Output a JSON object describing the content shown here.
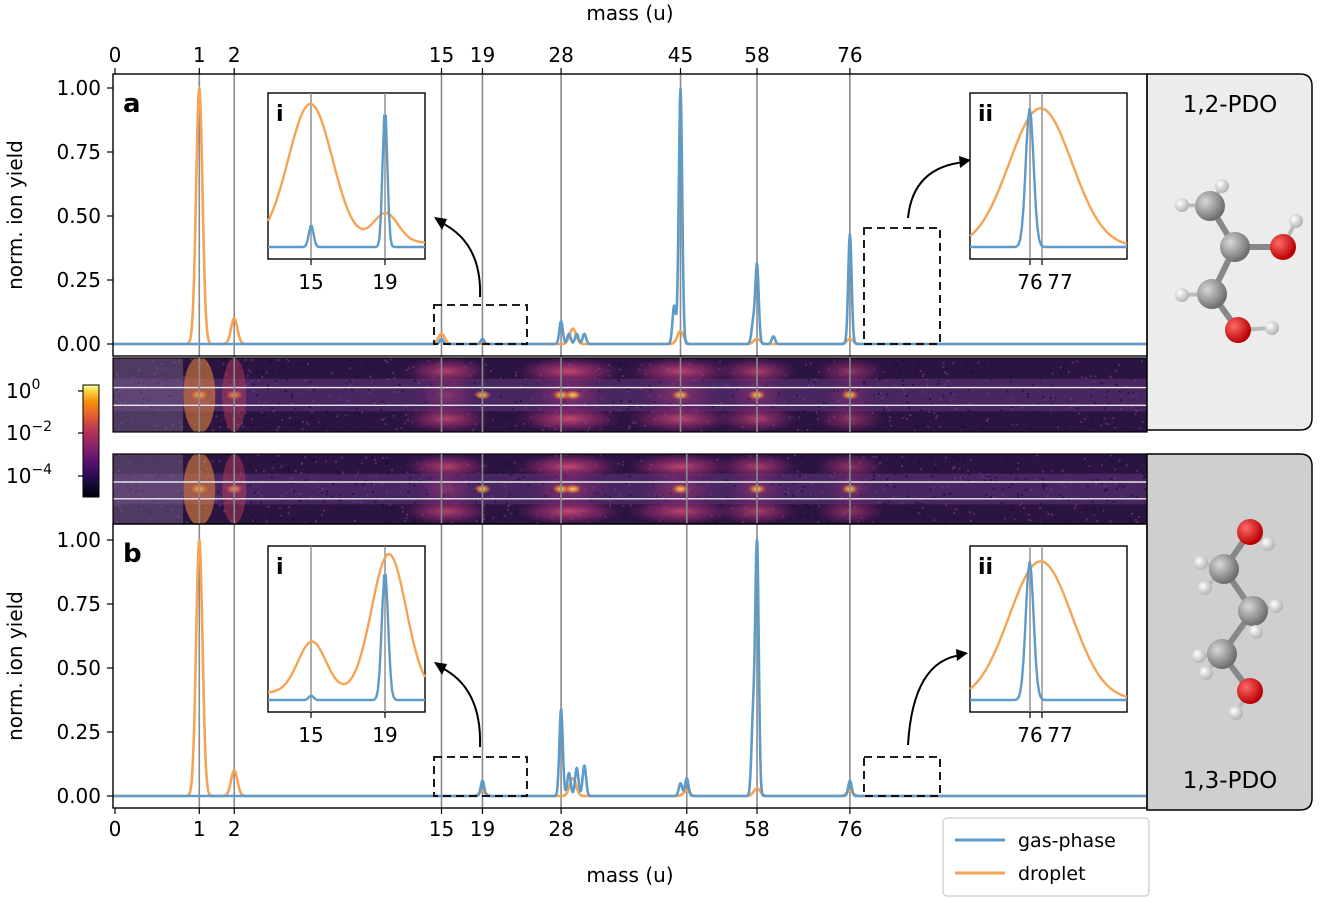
{
  "chart_data": {
    "type": "line",
    "x_axis": {
      "label": "mass (u)",
      "scale": "sqrt",
      "range": [
        0,
        165
      ],
      "ticks_top": [
        "0",
        "1",
        "2",
        "15",
        "19",
        "28",
        "45",
        "58",
        "76"
      ],
      "ticks_bottom": [
        "0",
        "1",
        "2",
        "15",
        "19",
        "28",
        "46",
        "58",
        "76"
      ]
    },
    "y_axis": {
      "label": "norm. ion yield",
      "range": [
        -0.04,
        1.06
      ],
      "ticks": [
        "0.00",
        "0.25",
        "0.50",
        "0.75",
        "1.00"
      ]
    },
    "colorbar": {
      "type": "heatmap",
      "scale": "log",
      "colormap": "inferno",
      "ticks": [
        "10^0",
        "10^-2",
        "10^-4"
      ]
    },
    "legend": {
      "placement": "bottom-right",
      "entries": [
        {
          "label": "gas-phase",
          "color": "#5f9bc8"
        },
        {
          "label": "droplet",
          "color": "#f5a354"
        }
      ]
    },
    "panels": [
      {
        "label": "a",
        "molecule": "1,2-PDO",
        "reference_lines": [
          1,
          2,
          15,
          19,
          28,
          45,
          58,
          76
        ],
        "series": [
          {
            "name": "gas-phase",
            "peaks": [
              {
                "x": 15,
                "y": 0.02
              },
              {
                "x": 19,
                "y": 0.02
              },
              {
                "x": 28,
                "y": 0.09
              },
              {
                "x": 29,
                "y": 0.04
              },
              {
                "x": 30,
                "y": 0.04
              },
              {
                "x": 31,
                "y": 0.04
              },
              {
                "x": 45,
                "y": 1.0
              },
              {
                "x": 44,
                "y": 0.15
              },
              {
                "x": 58,
                "y": 0.31
              },
              {
                "x": 57.3,
                "y": 0.08
              },
              {
                "x": 61,
                "y": 0.03
              },
              {
                "x": 76,
                "y": 0.43
              }
            ]
          },
          {
            "name": "droplet",
            "peaks": [
              {
                "x": 1,
                "y": 1.0
              },
              {
                "x": 2,
                "y": 0.1
              },
              {
                "x": 15,
                "y": 0.04
              },
              {
                "x": 29.5,
                "y": 0.06
              },
              {
                "x": 45,
                "y": 0.05
              },
              {
                "x": 58,
                "y": 0.02
              },
              {
                "x": 76,
                "y": 0.02
              }
            ]
          }
        ],
        "insets": [
          {
            "label": "i",
            "x_ticks": [
              "15",
              "19"
            ]
          },
          {
            "label": "ii",
            "x_ticks": [
              "76",
              "77"
            ]
          }
        ]
      },
      {
        "label": "b",
        "molecule": "1,3-PDO",
        "reference_lines": [
          1,
          2,
          15,
          19,
          28,
          46,
          58,
          76
        ],
        "series": [
          {
            "name": "gas-phase",
            "peaks": [
              {
                "x": 19,
                "y": 0.06
              },
              {
                "x": 28,
                "y": 0.34
              },
              {
                "x": 29,
                "y": 0.09
              },
              {
                "x": 30,
                "y": 0.11
              },
              {
                "x": 31,
                "y": 0.12
              },
              {
                "x": 45,
                "y": 0.05
              },
              {
                "x": 46,
                "y": 0.07
              },
              {
                "x": 58,
                "y": 1.0
              },
              {
                "x": 57.3,
                "y": 0.3
              },
              {
                "x": 76,
                "y": 0.06
              }
            ]
          },
          {
            "name": "droplet",
            "peaks": [
              {
                "x": 1,
                "y": 1.0
              },
              {
                "x": 2,
                "y": 0.1
              },
              {
                "x": 19,
                "y": 0.02
              },
              {
                "x": 29.5,
                "y": 0.07
              },
              {
                "x": 46,
                "y": 0.02
              },
              {
                "x": 58,
                "y": 0.03
              },
              {
                "x": 76,
                "y": 0.02
              }
            ]
          }
        ],
        "insets": [
          {
            "label": "i",
            "x_ticks": [
              "15",
              "19"
            ]
          },
          {
            "label": "ii",
            "x_ticks": [
              "76",
              "77"
            ]
          }
        ]
      }
    ]
  }
}
